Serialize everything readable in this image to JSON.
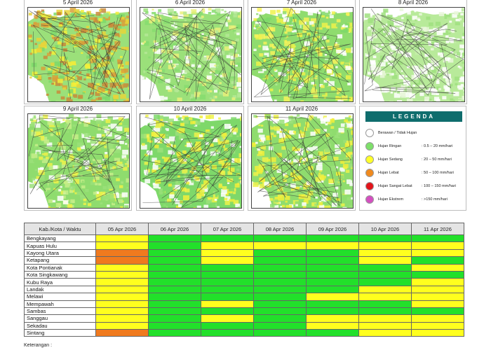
{
  "maps": [
    {
      "date": "5 April 2026"
    },
    {
      "date": "6 April 2026"
    },
    {
      "date": "7 April 2026"
    },
    {
      "date": "8 April 2026"
    },
    {
      "date": "9 April 2026"
    },
    {
      "date": "10 April 2026"
    },
    {
      "date": "11 April 2026"
    }
  ],
  "legend": {
    "title": "LEGENDA",
    "items": [
      {
        "label": "Berawan / Tidak Hujan",
        "range": "",
        "color": "#ffffff"
      },
      {
        "label": "Hujan Ringan",
        "range": ": 0.5 – 20 mm/hari",
        "color": "#7ee06a"
      },
      {
        "label": "Hujan Sedang",
        "range": ": 20 – 50 mm/hari",
        "color": "#ffff2a"
      },
      {
        "label": "Hujan Lebat",
        "range": ": 50 – 100 mm/hari",
        "color": "#f08a1e"
      },
      {
        "label": "Hujan Sangat Lebat",
        "range": ": 100 – 150 mm/hari",
        "color": "#e3141b"
      },
      {
        "label": "Hujan Ekstrem",
        "range": ": >150 mm/hari",
        "color": "#d44fc0"
      }
    ]
  },
  "table": {
    "header_label": "Kab./Kota / Waktu",
    "columns": [
      "05 Apr 2026",
      "06 Apr 2026",
      "07 Apr 2026",
      "08 Apr 2026",
      "09 Apr 2026",
      "10 Apr 2026",
      "11 Apr 2026"
    ],
    "rows": [
      {
        "name": "Bengkayang",
        "levels": [
          "sedang",
          "ringan",
          "ringan",
          "ringan",
          "ringan",
          "ringan",
          "ringan"
        ]
      },
      {
        "name": "Kapuas Hulu",
        "levels": [
          "sedang",
          "ringan",
          "sedang",
          "sedang",
          "sedang",
          "sedang",
          "sedang"
        ]
      },
      {
        "name": "Kayong Utara",
        "levels": [
          "lebat",
          "ringan",
          "sedang",
          "ringan",
          "ringan",
          "sedang",
          "sedang"
        ]
      },
      {
        "name": "Ketapang",
        "levels": [
          "lebat",
          "ringan",
          "sedang",
          "ringan",
          "ringan",
          "sedang",
          "ringan"
        ]
      },
      {
        "name": "Kota Pontianak",
        "levels": [
          "sedang",
          "ringan",
          "ringan",
          "ringan",
          "ringan",
          "ringan",
          "sedang"
        ]
      },
      {
        "name": "Kota Singkawang",
        "levels": [
          "sedang",
          "ringan",
          "ringan",
          "ringan",
          "ringan",
          "ringan",
          "ringan"
        ]
      },
      {
        "name": "Kubu Raya",
        "levels": [
          "sedang",
          "ringan",
          "ringan",
          "ringan",
          "ringan",
          "ringan",
          "sedang"
        ]
      },
      {
        "name": "Landak",
        "levels": [
          "sedang",
          "ringan",
          "ringan",
          "ringan",
          "ringan",
          "sedang",
          "sedang"
        ]
      },
      {
        "name": "Melawi",
        "levels": [
          "sedang",
          "ringan",
          "ringan",
          "ringan",
          "sedang",
          "sedang",
          "sedang"
        ]
      },
      {
        "name": "Mempawah",
        "levels": [
          "sedang",
          "ringan",
          "sedang",
          "ringan",
          "ringan",
          "ringan",
          "sedang"
        ]
      },
      {
        "name": "Sambas",
        "levels": [
          "sedang",
          "ringan",
          "ringan",
          "ringan",
          "ringan",
          "ringan",
          "ringan"
        ]
      },
      {
        "name": "Sanggau",
        "levels": [
          "sedang",
          "ringan",
          "sedang",
          "ringan",
          "sedang",
          "sedang",
          "sedang"
        ]
      },
      {
        "name": "Sekadau",
        "levels": [
          "sedang",
          "ringan",
          "ringan",
          "ringan",
          "sedang",
          "sedang",
          "sedang"
        ]
      },
      {
        "name": "Sintang",
        "levels": [
          "lebat",
          "ringan",
          "ringan",
          "ringan",
          "ringan",
          "sedang",
          "sedang"
        ]
      }
    ]
  },
  "level_colors": {
    "ringan": "#22e02a",
    "sedang": "#ffff1e",
    "lebat": "#f07a1e"
  },
  "note": "Keterangan :"
}
